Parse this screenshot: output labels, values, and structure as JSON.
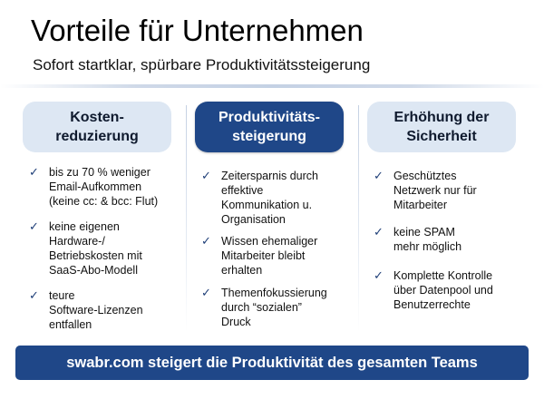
{
  "title": "Vorteile für Unternehmen",
  "subtitle": "Sofort startklar, spürbare Produktivitätssteigerung",
  "columns": [
    {
      "heading": "Kosten-\nreduzierung",
      "items": [
        "bis zu 70 % weniger\nEmail-Aufkommen\n(keine cc: & bcc: Flut)",
        "keine eigenen\nHardware-/\nBetriebskosten mit\nSaaS-Abo-Modell",
        "teure\nSoftware-Lizenzen\nentfallen"
      ]
    },
    {
      "heading": "Produktivitäts-\nsteigerung",
      "items": [
        "Zeitersparnis durch\neffektive\nKommunikation u.\nOrganisation",
        "Wissen ehemaliger\nMitarbeiter bleibt\nerhalten",
        "Themenfokussierung\ndurch  “sozialen”\nDruck"
      ]
    },
    {
      "heading": "Erhöhung der\nSicherheit",
      "items": [
        "Geschütztes\nNetzwerk nur für\nMitarbeiter",
        "keine SPAM\nmehr möglich",
        "Komplette Kontrolle\nüber Datenpool und\nBenutzerrechte"
      ]
    }
  ],
  "banner": "swabr.com steigert die Produktivität des gesamten Teams",
  "icons": {
    "bullet": "checkmark-icon"
  },
  "colors": {
    "accent": "#1f4788",
    "light_box": "#dde7f3"
  }
}
